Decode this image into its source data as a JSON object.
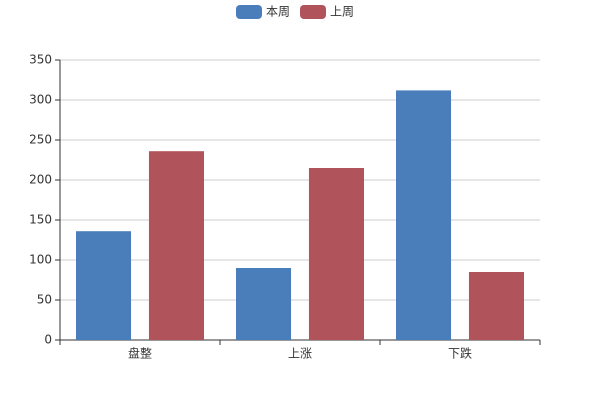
{
  "chart_data": {
    "type": "bar",
    "categories": [
      "盘整",
      "上涨",
      "下跌"
    ],
    "series": [
      {
        "name": "本周",
        "color": "#4a7ebb",
        "values": [
          136,
          90,
          312
        ]
      },
      {
        "name": "上周",
        "color": "#b0535a",
        "values": [
          236,
          215,
          85
        ]
      }
    ],
    "ylim": [
      0,
      350
    ],
    "yticks": [
      0,
      50,
      100,
      150,
      200,
      250,
      300,
      350
    ],
    "grid": true,
    "legend": "top"
  }
}
